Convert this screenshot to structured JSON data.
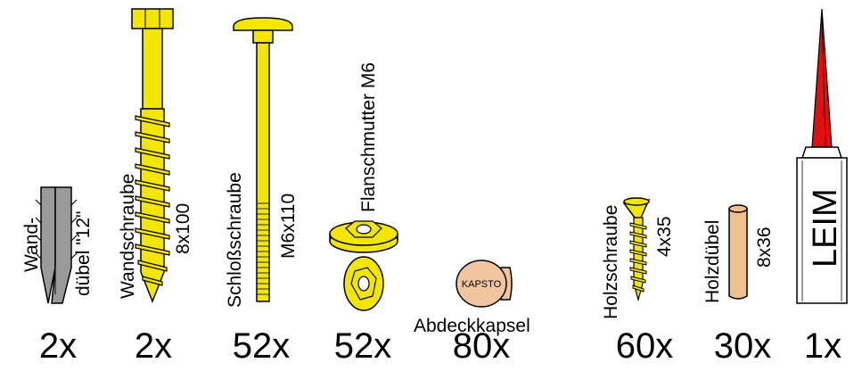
{
  "items": [
    {
      "name_line1": "Wand-",
      "name_line2": "dübel \"12\"",
      "quantity": "2x"
    },
    {
      "name": "Wandschraube",
      "size": "8x100",
      "quantity": "2x"
    },
    {
      "name": "Schloßschraube",
      "size": "M6x110",
      "quantity": "52x"
    },
    {
      "name": "Flanschmutter M6",
      "quantity": "52x"
    },
    {
      "name": "Abdeckkapsel",
      "cap_text": "KAPSTO",
      "quantity": "80x"
    },
    {
      "name": "Holzschraube",
      "size": "4x35",
      "quantity": "60x"
    },
    {
      "name": "Holzdübel",
      "size": "8x36",
      "quantity": "30x"
    },
    {
      "name": "LEIM",
      "quantity": "1x"
    }
  ],
  "colors": {
    "screw_yellow": "#f2e600",
    "anchor_gray": "#9a9a9a",
    "cap_tan": "#f1c5a0",
    "dowel_tan": "#f0c090",
    "glue_red": "#e01010",
    "glue_tube": "#ffffff"
  }
}
